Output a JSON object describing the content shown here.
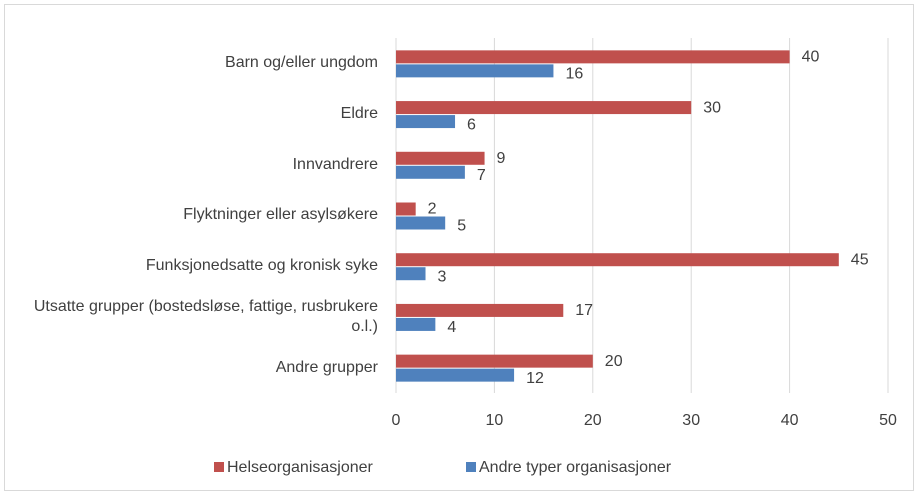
{
  "chart_data": {
    "type": "barh",
    "categories": [
      "Barn og/eller ungdom",
      "Eldre",
      "Innvandrere",
      "Flyktninger eller asylsøkere",
      "Funksjonedsatte og kronisk syke",
      "Utsatte grupper (bostedsløse, fattige, rusbrukere o.l.)",
      "Andre grupper"
    ],
    "series": [
      {
        "name": "Helseorganisasjoner",
        "color": "#c0504d",
        "values": [
          40,
          30,
          9,
          2,
          45,
          17,
          20
        ]
      },
      {
        "name": "Andre typer organisasjoner",
        "color": "#4f81bd",
        "values": [
          16,
          6,
          7,
          5,
          3,
          4,
          12
        ]
      }
    ],
    "xlim": [
      0,
      50
    ],
    "xticks": [
      0,
      10,
      20,
      30,
      40,
      50
    ],
    "grid": true,
    "legend": "bottom"
  }
}
